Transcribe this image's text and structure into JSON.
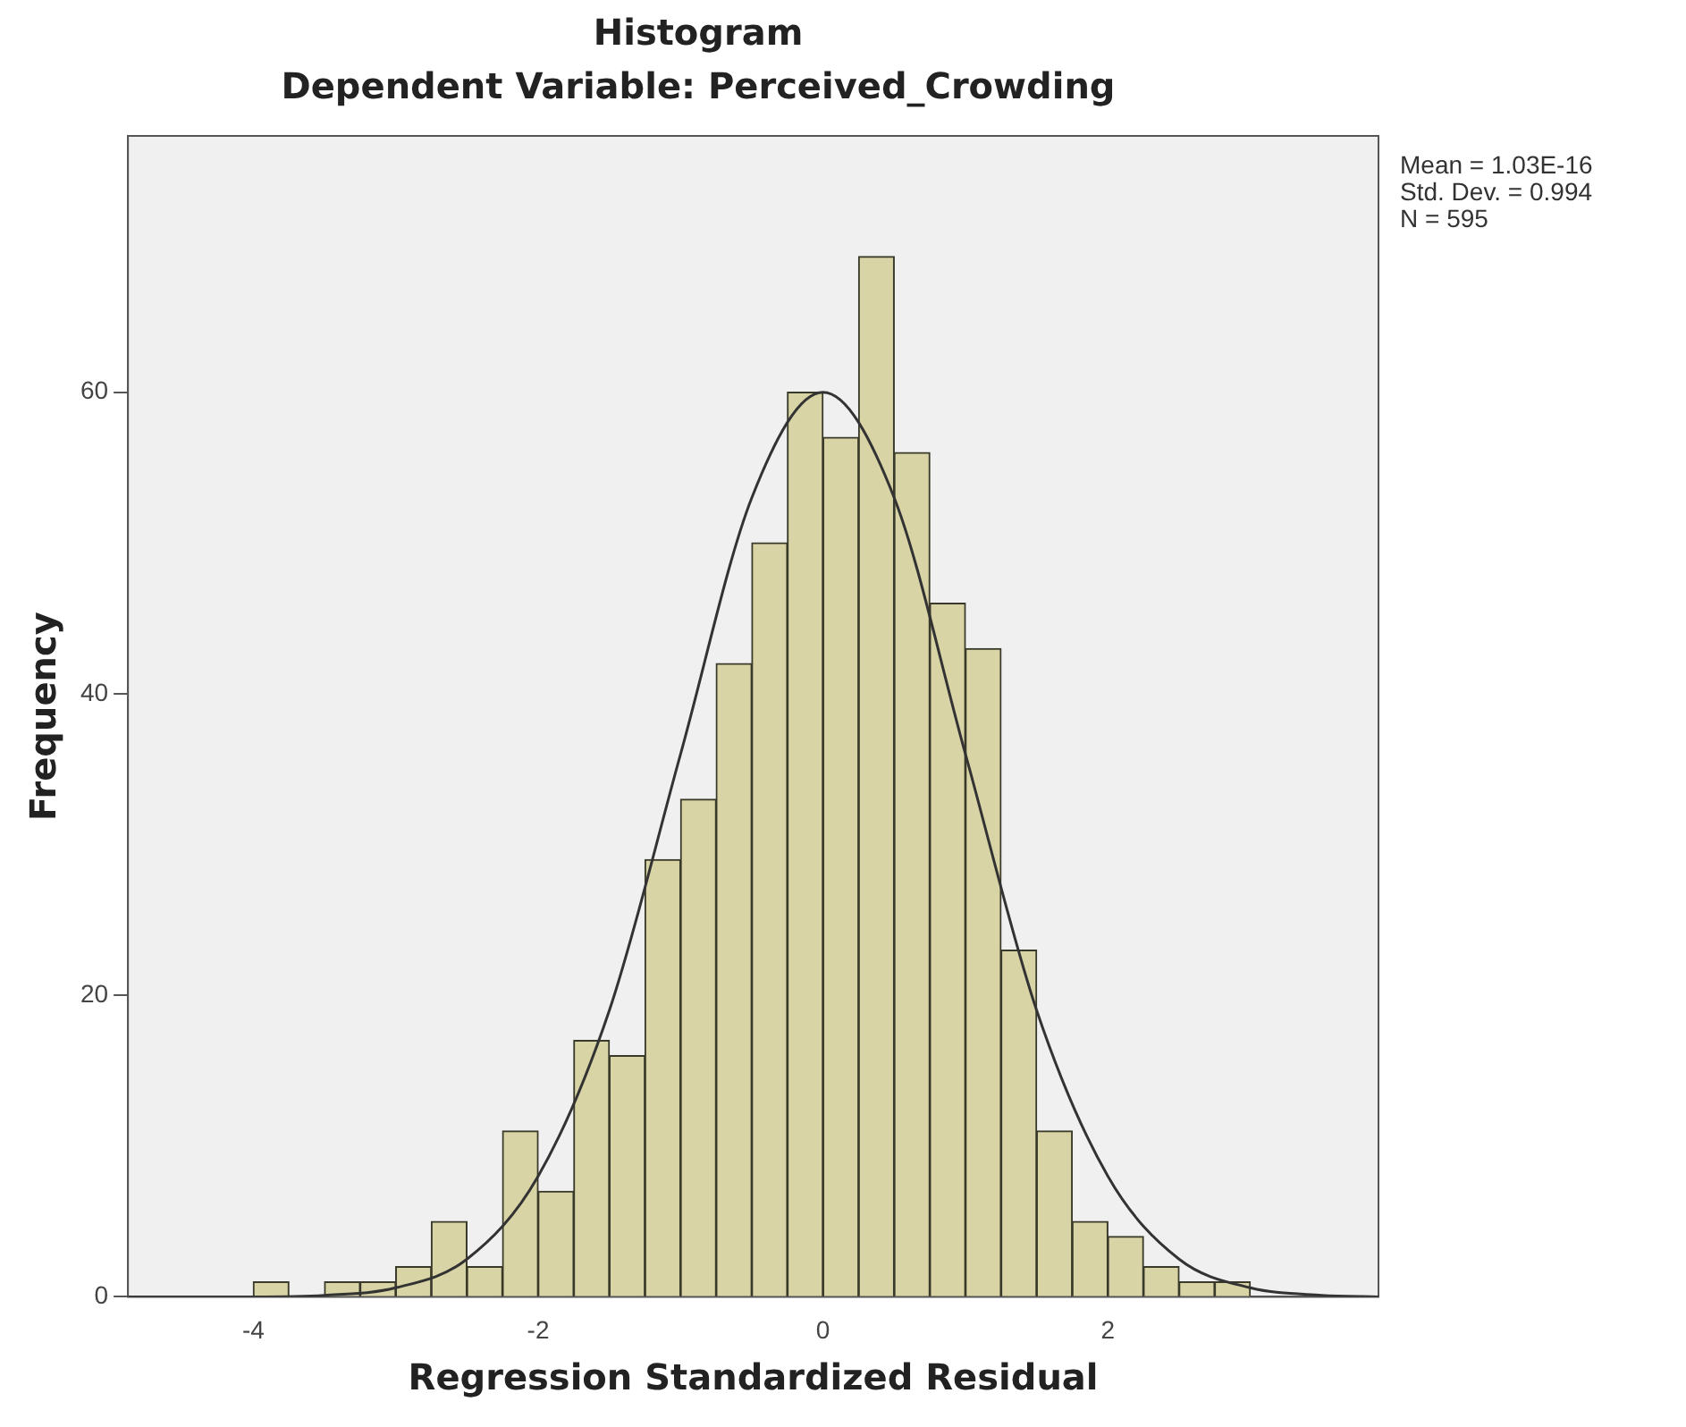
{
  "chart_data": {
    "type": "histogram",
    "title": "Histogram",
    "subtitle": "Dependent Variable: Perceived_Crowding",
    "xlabel": "Regression Standardized Residual",
    "ylabel": "Frequency",
    "bins": [
      -4,
      -3.75,
      -3.5,
      -3.25,
      -3,
      -2.75,
      -2.5,
      -2.25,
      -2,
      -1.75,
      -1.5,
      -1.25,
      -1,
      -0.75,
      -0.5,
      -0.25,
      0,
      0.25,
      0.5,
      0.75,
      1,
      1.25,
      1.5,
      1.75,
      2,
      2.25,
      2.5,
      2.75,
      3
    ],
    "values": [
      1,
      0,
      1,
      1,
      2,
      5,
      2,
      11,
      7,
      17,
      16,
      29,
      33,
      42,
      50,
      60,
      57,
      69,
      56,
      46,
      43,
      23,
      11,
      5,
      4,
      2,
      1,
      1
    ],
    "color": "#d9d4a6",
    "series": [
      {
        "type": "line",
        "color": "#333333",
        "x": [
          -4.88,
          -4.5,
          -4,
          -3.5,
          -3,
          -2.5,
          -2,
          -1.5,
          -1,
          -0.5,
          0,
          0.5,
          1,
          1.5,
          2,
          2.5,
          3,
          3.5,
          3.9
        ],
        "values": [
          0,
          0,
          0,
          0.1,
          0.6,
          2.5,
          8,
          19,
          36,
          53,
          60,
          53,
          36,
          19,
          8,
          2.5,
          0.6,
          0.1,
          0
        ]
      }
    ],
    "xlim": [
      -4.88,
      3.9
    ],
    "xticks": [
      -4,
      -2,
      0,
      2
    ],
    "ylim": [
      0,
      77
    ],
    "yticks": [
      0,
      20,
      40,
      60
    ],
    "grid": false,
    "legend": false,
    "annotations": [
      "Mean = 1.03E-16",
      "Std. Dev. = 0.994",
      "N = 595"
    ]
  }
}
